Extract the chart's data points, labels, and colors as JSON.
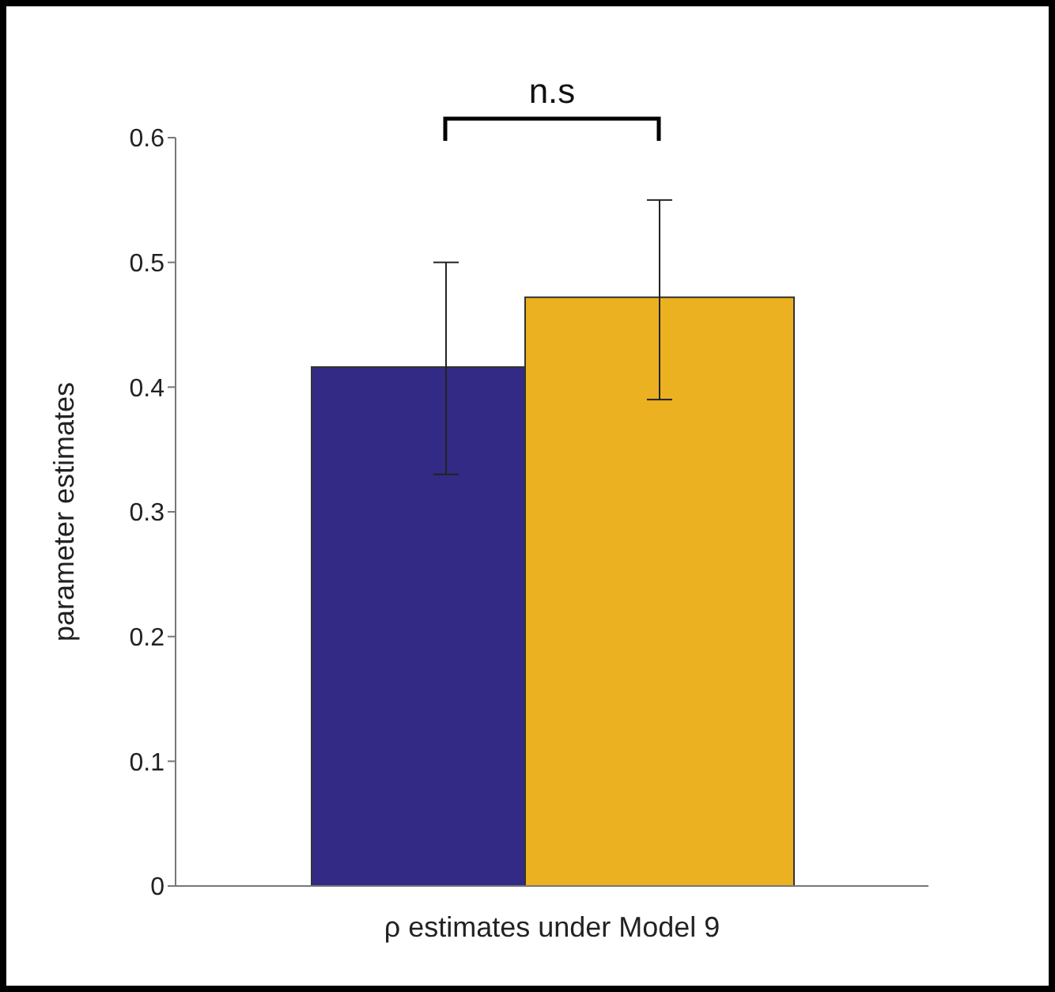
{
  "chart_data": {
    "type": "bar",
    "xlabel": "ρ estimates under Model 9",
    "ylabel": "parameter estimates",
    "categories": [
      null
    ],
    "series": [
      {
        "color": "#332a85",
        "values": [
          0.416
        ],
        "errors": [
          [
            0.33,
            0.5
          ]
        ]
      },
      {
        "color": "#ecb120",
        "values": [
          0.472
        ],
        "errors": [
          [
            0.39,
            0.55
          ]
        ]
      }
    ],
    "ylim": [
      0,
      0.6
    ],
    "yticks": [
      0,
      0.1,
      0.2,
      0.3,
      0.4,
      0.5,
      0.6
    ],
    "annotations": [
      "n.s"
    ]
  }
}
